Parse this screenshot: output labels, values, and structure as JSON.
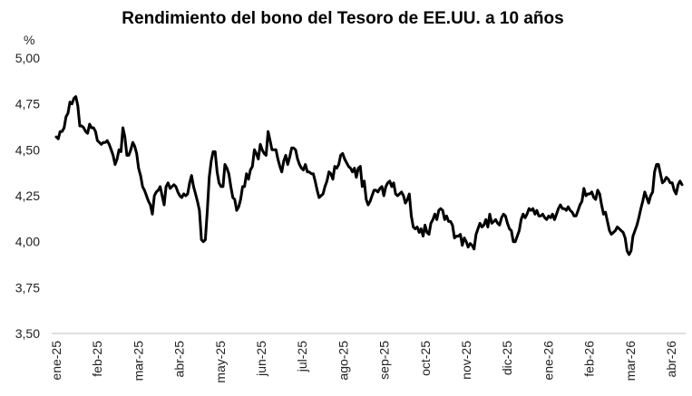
{
  "chart_data": {
    "type": "line",
    "title": "Rendimiento del bono del Tesoro de EE.UU. a 10 años",
    "ylabel": "%",
    "xlabel": "",
    "ylim": [
      3.5,
      5.0
    ],
    "yticks": [
      "3,50",
      "3,75",
      "4,00",
      "4,25",
      "4,50",
      "4,75",
      "5,00"
    ],
    "ytick_values": [
      3.5,
      3.75,
      4.0,
      4.25,
      4.5,
      4.75,
      5.0
    ],
    "x_ticks": [
      "ene-25",
      "feb-25",
      "mar-25",
      "abr-25",
      "may-25",
      "jun-25",
      "jul-25",
      "ago-25",
      "sep-25",
      "oct-25",
      "nov-25",
      "dic-25",
      "ene-26",
      "feb-26",
      "mar-26",
      "abr-26"
    ],
    "grid": false,
    "legend": "none",
    "line_color": "#000000",
    "series": [
      {
        "x_start": "ene-25",
        "x_end": "abr-26",
        "values": [
          4.57,
          4.56,
          4.6,
          4.6,
          4.62,
          4.68,
          4.7,
          4.76,
          4.75,
          4.78,
          4.79,
          4.74,
          4.63,
          4.63,
          4.62,
          4.6,
          4.59,
          4.64,
          4.62,
          4.62,
          4.6,
          4.55,
          4.54,
          4.53,
          4.54,
          4.54,
          4.55,
          4.53,
          4.5,
          4.47,
          4.42,
          4.45,
          4.5,
          4.49,
          4.62,
          4.57,
          4.47,
          4.47,
          4.5,
          4.54,
          4.52,
          4.48,
          4.4,
          4.36,
          4.3,
          4.28,
          4.25,
          4.22,
          4.2,
          4.15,
          4.25,
          4.27,
          4.28,
          4.3,
          4.25,
          4.2,
          4.3,
          4.32,
          4.29,
          4.3,
          4.31,
          4.3,
          4.27,
          4.25,
          4.24,
          4.26,
          4.25,
          4.26,
          4.32,
          4.36,
          4.3,
          4.26,
          4.22,
          4.17,
          4.01,
          4.0,
          4.01,
          4.17,
          4.35,
          4.44,
          4.49,
          4.49,
          4.38,
          4.32,
          4.3,
          4.3,
          4.42,
          4.4,
          4.37,
          4.3,
          4.24,
          4.23,
          4.17,
          4.19,
          4.23,
          4.3,
          4.3,
          4.37,
          4.34,
          4.39,
          4.41,
          4.5,
          4.48,
          4.45,
          4.53,
          4.5,
          4.48,
          4.47,
          4.6,
          4.55,
          4.5,
          4.5,
          4.5,
          4.45,
          4.41,
          4.38,
          4.44,
          4.47,
          4.42,
          4.46,
          4.51,
          4.51,
          4.5,
          4.45,
          4.42,
          4.4,
          4.39,
          4.42,
          4.38,
          4.38,
          4.37,
          4.37,
          4.33,
          4.28,
          4.24,
          4.25,
          4.26,
          4.3,
          4.33,
          4.38,
          4.37,
          4.34,
          4.41,
          4.4,
          4.42,
          4.47,
          4.48,
          4.45,
          4.43,
          4.41,
          4.4,
          4.38,
          4.4,
          4.35,
          4.4,
          4.41,
          4.3,
          4.33,
          4.23,
          4.2,
          4.22,
          4.25,
          4.28,
          4.28,
          4.27,
          4.29,
          4.3,
          4.25,
          4.3,
          4.32,
          4.33,
          4.3,
          4.32,
          4.26,
          4.25,
          4.26,
          4.27,
          4.25,
          4.21,
          4.23,
          4.26,
          4.14,
          4.08,
          4.07,
          4.08,
          4.05,
          4.07,
          4.03,
          4.09,
          4.05,
          4.04,
          4.1,
          4.12,
          4.15,
          4.12,
          4.17,
          4.18,
          4.17,
          4.12,
          4.14,
          4.11,
          4.11,
          4.09,
          4.02,
          4.03,
          4.03,
          4.04,
          3.98,
          4.02,
          4.0,
          3.97,
          3.99,
          3.98,
          3.96,
          4.04,
          4.07,
          4.1,
          4.08,
          4.09,
          4.12,
          4.08,
          4.15,
          4.1,
          4.11,
          4.12,
          4.1,
          4.09,
          4.13,
          4.15,
          4.14,
          4.1,
          4.07,
          4.06,
          4.0,
          4.0,
          4.03,
          4.06,
          4.12,
          4.15,
          4.13,
          4.15,
          4.18,
          4.17,
          4.18,
          4.15,
          4.17,
          4.14,
          4.14,
          4.15,
          4.13,
          4.12,
          4.14,
          4.13,
          4.15,
          4.12,
          4.15,
          4.18,
          4.2,
          4.18,
          4.18,
          4.17,
          4.19,
          4.17,
          4.16,
          4.14,
          4.14,
          4.17,
          4.2,
          4.22,
          4.29,
          4.25,
          4.26,
          4.26,
          4.27,
          4.24,
          4.23,
          4.28,
          4.26,
          4.2,
          4.15,
          4.16,
          4.11,
          4.06,
          4.04,
          4.05,
          4.06,
          4.08,
          4.07,
          4.06,
          4.05,
          4.02,
          3.95,
          3.93,
          3.95,
          4.03,
          4.06,
          4.09,
          4.13,
          4.18,
          4.22,
          4.27,
          4.24,
          4.21,
          4.25,
          4.27,
          4.38,
          4.42,
          4.42,
          4.37,
          4.32,
          4.33,
          4.35,
          4.34,
          4.32,
          4.32,
          4.28,
          4.26,
          4.31,
          4.33,
          4.31
        ]
      }
    ]
  }
}
